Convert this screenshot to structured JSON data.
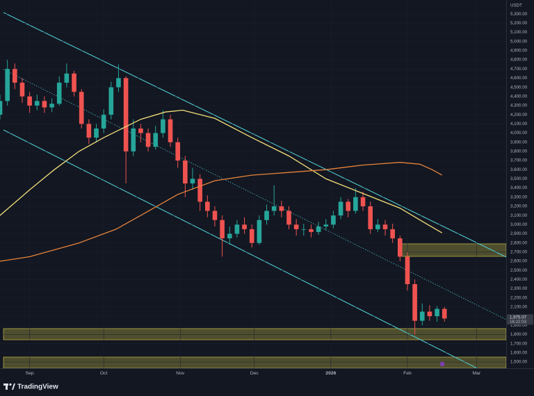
{
  "chart_data": {
    "type": "candlestick",
    "currency": "USDT",
    "brand": "TradingView",
    "x": [
      -12,
      -9,
      -6,
      -3,
      0,
      3,
      6,
      9,
      12,
      15,
      18,
      21,
      24,
      27,
      30,
      33,
      36,
      39,
      42,
      45,
      48,
      51,
      54,
      57,
      60,
      63,
      66,
      69,
      72,
      75,
      78,
      81,
      84,
      87,
      90,
      93,
      96,
      99,
      102,
      105,
      108,
      111,
      114,
      117,
      120,
      123,
      126,
      129,
      132,
      135,
      138,
      141,
      144,
      147,
      150,
      153,
      156,
      159,
      162,
      165,
      168
    ],
    "open": [
      4200,
      4350,
      4700,
      4550,
      4400,
      4300,
      4350,
      4280,
      4320,
      4550,
      4650,
      4450,
      4100,
      3950,
      4050,
      4200,
      4500,
      4600,
      3800,
      4050,
      4000,
      3850,
      4000,
      4150,
      3900,
      3700,
      3450,
      3500,
      3250,
      3150,
      3050,
      2850,
      2900,
      3000,
      2950,
      2800,
      3050,
      3150,
      3200,
      3150,
      3000,
      2950,
      2950,
      2920,
      2980,
      3000,
      3100,
      3250,
      3150,
      3300,
      3200,
      2950,
      3000,
      2950,
      2850,
      2650,
      2350,
      1950,
      2050,
      2000,
      2080
    ],
    "high": [
      4420,
      4800,
      4760,
      4600,
      4450,
      4420,
      4400,
      4380,
      4620,
      4760,
      4680,
      4480,
      4150,
      4100,
      4260,
      4560,
      4750,
      4620,
      4150,
      4100,
      4050,
      4080,
      4250,
      4200,
      3950,
      3750,
      3620,
      3550,
      3320,
      3200,
      3100,
      2980,
      3050,
      3080,
      3000,
      3100,
      3220,
      3430,
      3260,
      3200,
      3060,
      3010,
      3000,
      3030,
      3060,
      3150,
      3300,
      3280,
      3400,
      3360,
      3250,
      3060,
      3050,
      3010,
      2880,
      2700,
      2400,
      2140,
      2120,
      2110,
      2100
    ],
    "low": [
      4150,
      4300,
      4480,
      4330,
      4220,
      4250,
      4220,
      4230,
      4300,
      4500,
      4400,
      4050,
      3880,
      3900,
      4000,
      4150,
      4450,
      3450,
      3750,
      3900,
      3800,
      3820,
      3950,
      3850,
      3620,
      3300,
      3380,
      3150,
      3080,
      2980,
      2650,
      2780,
      2860,
      2900,
      2750,
      2780,
      3000,
      3100,
      3080,
      2950,
      2880,
      2880,
      2860,
      2890,
      2940,
      2960,
      3060,
      3080,
      3120,
      3150,
      2900,
      2920,
      2880,
      2800,
      2600,
      2280,
      1800,
      1900,
      1950,
      1940,
      1940
    ],
    "close": [
      4350,
      4700,
      4550,
      4400,
      4300,
      4350,
      4280,
      4320,
      4550,
      4650,
      4450,
      4100,
      3950,
      4050,
      4200,
      4500,
      4600,
      3800,
      4050,
      4000,
      3850,
      4000,
      4150,
      3900,
      3700,
      3450,
      3500,
      3250,
      3150,
      3050,
      2850,
      2900,
      3000,
      2950,
      2800,
      3050,
      3150,
      3200,
      3150,
      3000,
      2950,
      2950,
      2920,
      2980,
      3000,
      3100,
      3250,
      3150,
      3300,
      3200,
      2950,
      3000,
      2950,
      2850,
      2650,
      2350,
      1950,
      2050,
      2000,
      2080,
      1975
    ],
    "up_color": "#26a69a",
    "down_color": "#ef5350",
    "lines": [
      {
        "color": "#f3e07a",
        "x": [
          -12,
          0,
          10,
          20,
          30,
          45,
          55,
          62,
          75,
          90,
          105,
          120,
          135,
          150,
          160,
          167
        ],
        "values": [
          3100,
          3380,
          3600,
          3800,
          3950,
          4150,
          4230,
          4250,
          4160,
          3950,
          3750,
          3500,
          3340,
          3180,
          3020,
          2910
        ]
      },
      {
        "color": "#e8843a",
        "x": [
          -12,
          0,
          20,
          35,
          45,
          60,
          75,
          90,
          105,
          120,
          135,
          150,
          158,
          163,
          167
        ],
        "values": [
          2600,
          2650,
          2800,
          2950,
          3100,
          3330,
          3480,
          3540,
          3570,
          3600,
          3650,
          3680,
          3660,
          3600,
          3540
        ]
      }
    ],
    "last_price": {
      "value": 1975.07,
      "label": "1,975.07"
    },
    "countdown": "16:22:03",
    "xlim": [
      -12,
      193
    ],
    "ylim": [
      1432,
      5453
    ],
    "xticks": [
      {
        "value": 0,
        "label": "Sep"
      },
      {
        "value": 30,
        "label": "Oct"
      },
      {
        "value": 61,
        "label": "Nov"
      },
      {
        "value": 91,
        "label": "Dec"
      },
      {
        "value": 122,
        "label": "2026"
      },
      {
        "value": 153,
        "label": "Feb"
      },
      {
        "value": 181,
        "label": "Mar"
      }
    ],
    "yticks": [
      {
        "value": 1500,
        "label": "1,500.00"
      },
      {
        "value": 1600,
        "label": "1,600.00"
      },
      {
        "value": 1700,
        "label": "1,700.00"
      },
      {
        "value": 1800,
        "label": "1,800.00"
      },
      {
        "value": 1900,
        "label": "1,900.00"
      },
      {
        "value": 2000,
        "label": "2,000.00"
      },
      {
        "value": 2100,
        "label": "2,100.00"
      },
      {
        "value": 2200,
        "label": "2,200.00"
      },
      {
        "value": 2300,
        "label": "2,300.00"
      },
      {
        "value": 2400,
        "label": "2,400.00"
      },
      {
        "value": 2500,
        "label": "2,500.00"
      },
      {
        "value": 2600,
        "label": "2,600.00"
      },
      {
        "value": 2700,
        "label": "2,700.00"
      },
      {
        "value": 2800,
        "label": "2,800.00"
      },
      {
        "value": 2900,
        "label": "2,900.00"
      },
      {
        "value": 3000,
        "label": "3,000.00"
      },
      {
        "value": 3100,
        "label": "3,100.00"
      },
      {
        "value": 3200,
        "label": "3,200.00"
      },
      {
        "value": 3300,
        "label": "3,300.00"
      },
      {
        "value": 3400,
        "label": "3,400.00"
      },
      {
        "value": 3500,
        "label": "3,500.00"
      },
      {
        "value": 3600,
        "label": "3,600.00"
      },
      {
        "value": 3700,
        "label": "3,700.00"
      },
      {
        "value": 3800,
        "label": "3,800.00"
      },
      {
        "value": 3900,
        "label": "3,900.00"
      },
      {
        "value": 4000,
        "label": "4,000.00"
      },
      {
        "value": 4100,
        "label": "4,100.00"
      },
      {
        "value": 4200,
        "label": "4,200.00"
      },
      {
        "value": 4300,
        "label": "4,300.00"
      },
      {
        "value": 4400,
        "label": "4,400.00"
      },
      {
        "value": 4500,
        "label": "4,500.00"
      },
      {
        "value": 4600,
        "label": "4,600.00"
      },
      {
        "value": 4700,
        "label": "4,700.00"
      },
      {
        "value": 4800,
        "label": "4,800.00"
      },
      {
        "value": 4900,
        "label": "4,900.00"
      },
      {
        "value": 5000,
        "label": "5,000.00"
      },
      {
        "value": 5100,
        "label": "5,100.00"
      },
      {
        "value": 5200,
        "label": "5,200.00"
      },
      {
        "value": 5300,
        "label": "5,300.00"
      }
    ]
  }
}
